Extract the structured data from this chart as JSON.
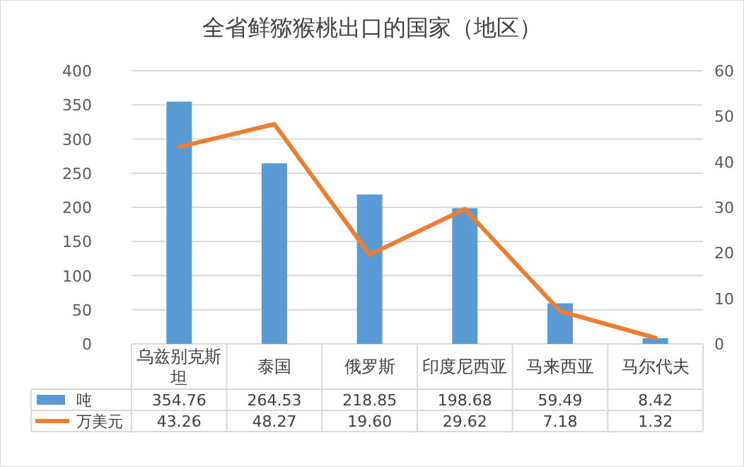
{
  "chart_data": {
    "type": "bar",
    "title": "全省鲜猕猴桃出口的国家（地区）",
    "categories": [
      "乌兹别克斯坦",
      "泰国",
      "俄罗斯",
      "印度尼西亚",
      "马来西亚",
      "马尔代夫"
    ],
    "series": [
      {
        "name": "吨",
        "color": "#5b9bd5",
        "values": [
          354.76,
          264.53,
          218.85,
          198.68,
          59.49,
          8.42
        ],
        "value_labels": [
          "354.76",
          "264.53",
          "218.85",
          "198.68",
          "59.49",
          "8.42"
        ]
      },
      {
        "name": "万美元",
        "type": "line",
        "axis": "y2",
        "color": "#ed7d31",
        "values": [
          43.26,
          48.27,
          19.6,
          29.62,
          7.18,
          1.32
        ],
        "value_labels": [
          "43.26",
          "48.27",
          "19.60",
          "29.62",
          "7.18",
          "1.32"
        ]
      }
    ],
    "ylim": [
      0,
      400
    ],
    "yticks": [
      0,
      50,
      100,
      150,
      200,
      250,
      300,
      350,
      400
    ],
    "y2lim": [
      0,
      60
    ],
    "y2ticks": [
      0,
      10,
      20,
      30,
      40,
      50,
      60
    ],
    "grid": "y",
    "legend": "bottom"
  }
}
